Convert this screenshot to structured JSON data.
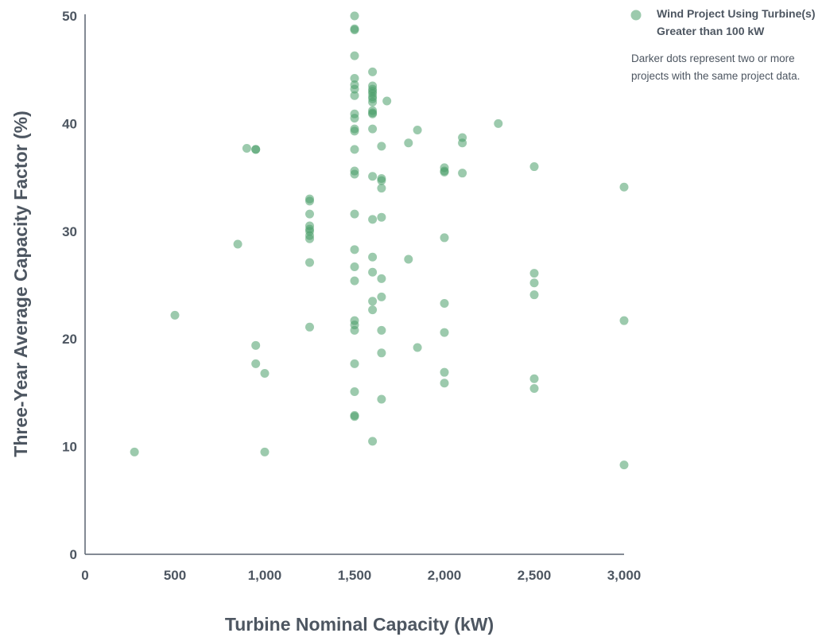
{
  "chart_data": {
    "type": "scatter",
    "xlabel": "Turbine Nominal Capacity (kW)",
    "ylabel": "Three-Year Average Capacity Factor (%)",
    "xlim": [
      0,
      3000
    ],
    "ylim": [
      0,
      50
    ],
    "x_ticks": [
      "0",
      "500",
      "1,000",
      "1,500",
      "2,000",
      "2,500",
      "3,000"
    ],
    "x_tick_values": [
      0,
      500,
      1000,
      1500,
      2000,
      2500,
      3000
    ],
    "y_ticks": [
      "0",
      "10",
      "20",
      "30",
      "40",
      "50"
    ],
    "y_tick_values": [
      0,
      10,
      20,
      30,
      40,
      50
    ],
    "grid": false,
    "legend_position": "top-right",
    "series": [
      {
        "name": "Wind Project Using Turbine(s) Greater than 100 kW",
        "color": "#4a9f6a",
        "points": [
          [
            275,
            9.5
          ],
          [
            500,
            22.2
          ],
          [
            850,
            28.8
          ],
          [
            900,
            37.7
          ],
          [
            950,
            37.6
          ],
          [
            950,
            37.6
          ],
          [
            950,
            19.4
          ],
          [
            950,
            17.7
          ],
          [
            1000,
            9.5
          ],
          [
            1000,
            16.8
          ],
          [
            1250,
            33.0
          ],
          [
            1250,
            32.8
          ],
          [
            1250,
            31.6
          ],
          [
            1250,
            30.5
          ],
          [
            1250,
            30.2
          ],
          [
            1250,
            30.0
          ],
          [
            1250,
            29.6
          ],
          [
            1250,
            29.3
          ],
          [
            1250,
            27.1
          ],
          [
            1250,
            21.1
          ],
          [
            1500,
            50.0
          ],
          [
            1500,
            48.8
          ],
          [
            1500,
            48.7
          ],
          [
            1500,
            46.3
          ],
          [
            1500,
            44.2
          ],
          [
            1500,
            43.6
          ],
          [
            1500,
            43.2
          ],
          [
            1500,
            42.6
          ],
          [
            1500,
            40.9
          ],
          [
            1500,
            40.5
          ],
          [
            1500,
            39.5
          ],
          [
            1500,
            39.3
          ],
          [
            1500,
            37.6
          ],
          [
            1500,
            35.6
          ],
          [
            1500,
            35.3
          ],
          [
            1500,
            31.6
          ],
          [
            1500,
            28.3
          ],
          [
            1500,
            26.7
          ],
          [
            1500,
            25.4
          ],
          [
            1500,
            21.7
          ],
          [
            1500,
            21.3
          ],
          [
            1500,
            20.8
          ],
          [
            1500,
            17.7
          ],
          [
            1500,
            15.1
          ],
          [
            1500,
            12.9
          ],
          [
            1500,
            12.8
          ],
          [
            1600,
            44.8
          ],
          [
            1600,
            43.5
          ],
          [
            1600,
            43.2
          ],
          [
            1600,
            43.0
          ],
          [
            1600,
            42.8
          ],
          [
            1600,
            42.5
          ],
          [
            1600,
            42.3
          ],
          [
            1600,
            42.0
          ],
          [
            1600,
            41.2
          ],
          [
            1600,
            41.0
          ],
          [
            1600,
            40.9
          ],
          [
            1600,
            39.5
          ],
          [
            1600,
            35.1
          ],
          [
            1600,
            31.1
          ],
          [
            1600,
            27.6
          ],
          [
            1600,
            26.2
          ],
          [
            1600,
            23.5
          ],
          [
            1600,
            22.7
          ],
          [
            1600,
            10.5
          ],
          [
            1650,
            37.9
          ],
          [
            1650,
            34.9
          ],
          [
            1650,
            34.7
          ],
          [
            1650,
            34.0
          ],
          [
            1650,
            31.3
          ],
          [
            1650,
            25.6
          ],
          [
            1650,
            23.9
          ],
          [
            1650,
            20.8
          ],
          [
            1650,
            18.7
          ],
          [
            1650,
            14.4
          ],
          [
            1680,
            42.1
          ],
          [
            1800,
            38.2
          ],
          [
            1800,
            27.4
          ],
          [
            1850,
            39.4
          ],
          [
            1850,
            19.2
          ],
          [
            2000,
            35.9
          ],
          [
            2000,
            35.6
          ],
          [
            2000,
            35.5
          ],
          [
            2000,
            29.4
          ],
          [
            2000,
            23.3
          ],
          [
            2000,
            20.6
          ],
          [
            2000,
            16.9
          ],
          [
            2000,
            15.9
          ],
          [
            2100,
            38.7
          ],
          [
            2100,
            38.2
          ],
          [
            2100,
            35.4
          ],
          [
            2300,
            40.0
          ],
          [
            2500,
            36.0
          ],
          [
            2500,
            26.1
          ],
          [
            2500,
            25.2
          ],
          [
            2500,
            24.1
          ],
          [
            2500,
            16.3
          ],
          [
            2500,
            15.4
          ],
          [
            3000,
            34.1
          ],
          [
            3000,
            21.7
          ],
          [
            3000,
            8.3
          ]
        ]
      }
    ],
    "legend_entries": [
      "Wind Project Using Turbine(s)",
      "Greater than 100 kW"
    ],
    "annotation_lines": [
      "Darker dots represent two or more",
      "projects with the same project data."
    ]
  }
}
